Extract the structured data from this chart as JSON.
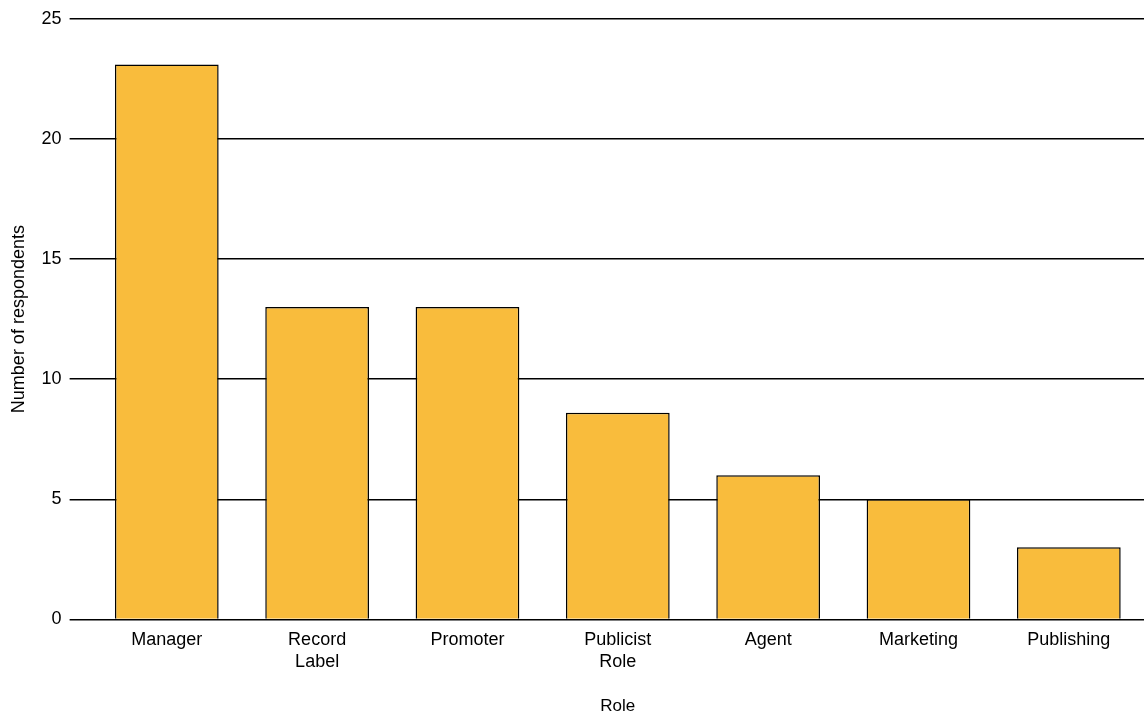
{
  "chart_data": {
    "type": "bar",
    "xlabel": "Role",
    "ylabel": "Number of respondents",
    "categories": [
      "Manager",
      "Record Label",
      "Promoter",
      "Publicist Role",
      "Agent",
      "Marketing",
      "Publishing"
    ],
    "values": [
      23.1,
      13,
      13,
      8.6,
      6,
      5,
      3
    ],
    "color": "#f9bc3c",
    "ylim": [
      0,
      25
    ],
    "yticks": [
      0,
      5,
      10,
      15,
      20,
      25
    ],
    "grid": "y",
    "legend": false
  }
}
